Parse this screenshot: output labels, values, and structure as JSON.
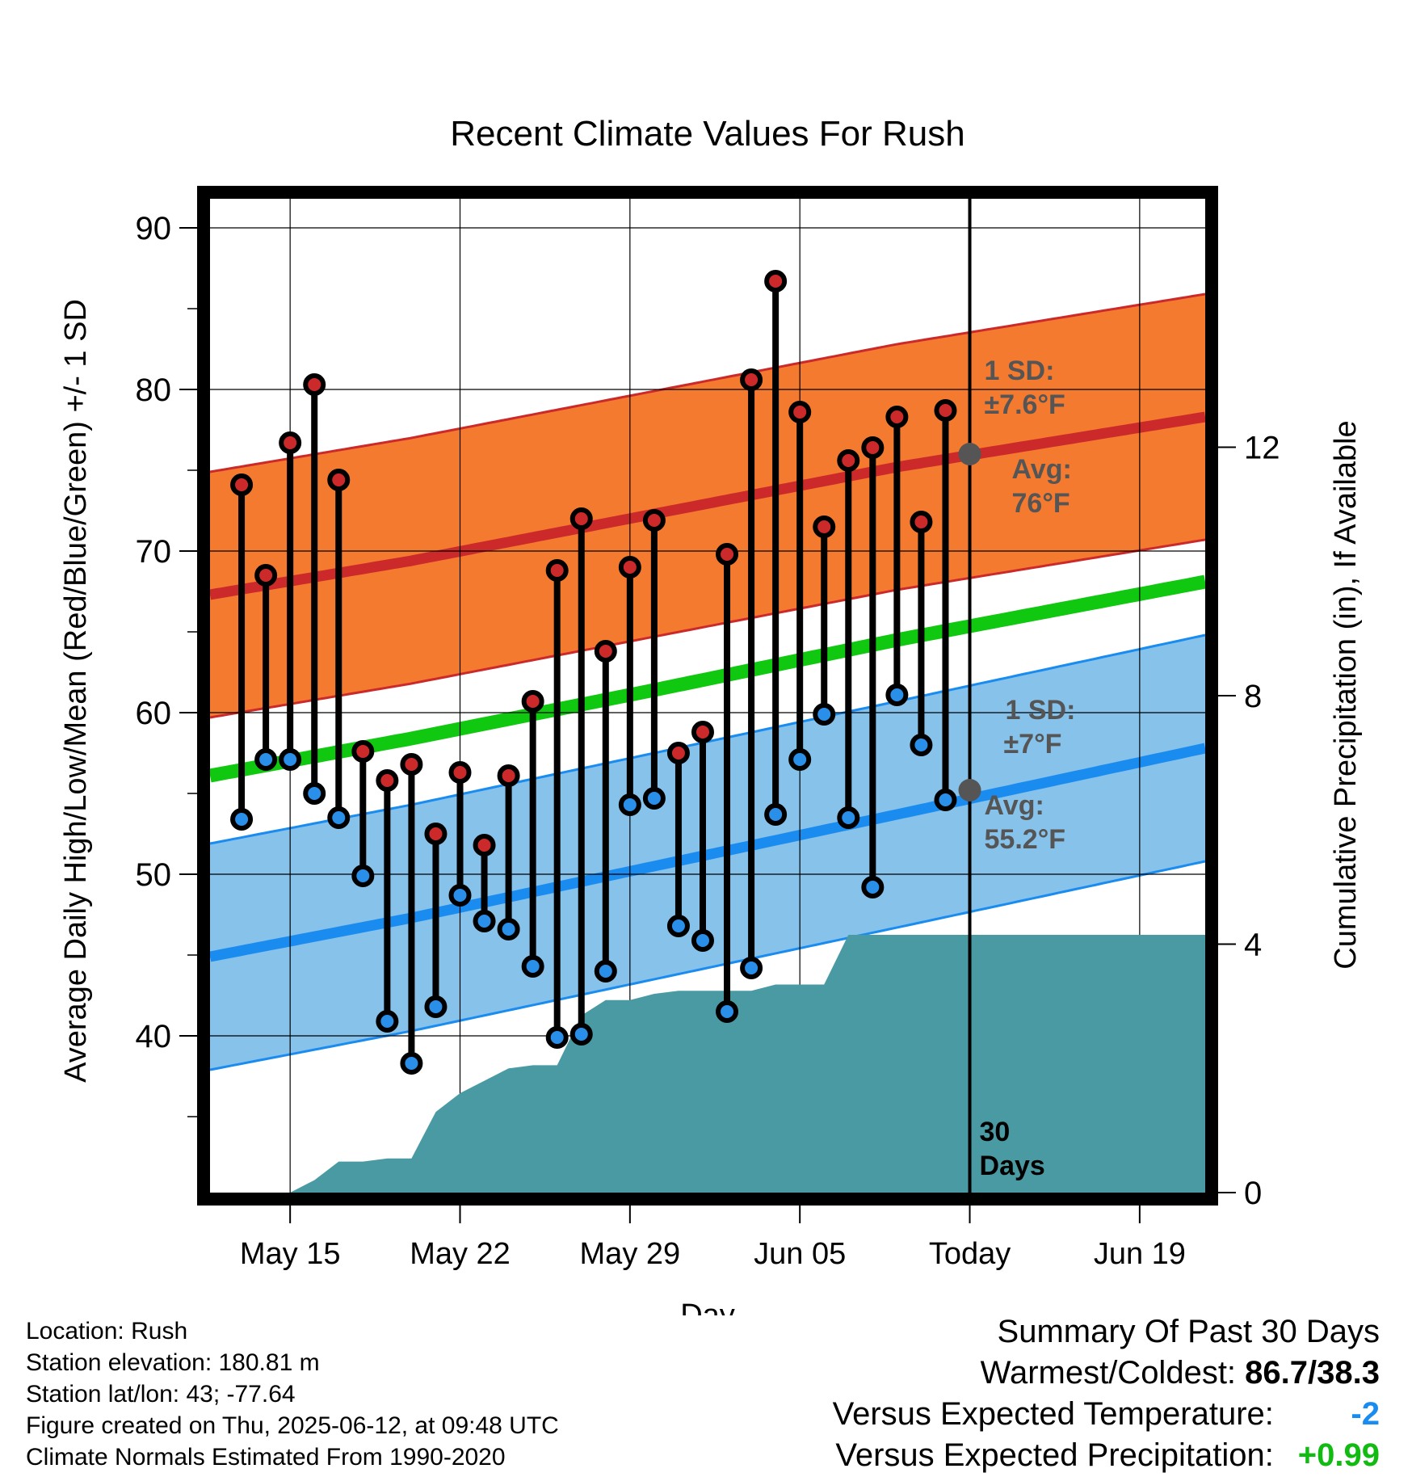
{
  "colors": {
    "high_dot": "#cc2a2a",
    "low_dot": "#2a8fe8",
    "high_band": "#f47a30",
    "high_avg": "#cc2a2a",
    "low_band": "#87c2ea",
    "low_avg": "#1a8cf0",
    "mean_line": "#11c811",
    "precip": "#4a9aa4",
    "annotation": "#555555",
    "warm_value": "#000000",
    "temp_diff": "#1a8cf0",
    "precip_diff": "#11bb11"
  },
  "chart_data": {
    "type": "line",
    "title": "Recent Climate Values For Rush",
    "xlabel": "Day",
    "ylabel": "Average Daily High/Low/Mean (Red/Blue/Green) +/- 1 SD",
    "ylabel_right": "Cumulative Precipitation (in), If Available",
    "x_ticks": [
      "May 15",
      "May 22",
      "May 29",
      "Jun 05",
      "Today",
      "Jun 19"
    ],
    "x_tick_days": [
      15,
      22,
      29,
      36,
      43,
      50
    ],
    "x_range_days": [
      11.7,
      52.7
    ],
    "today_day": 43,
    "ylim": [
      30.3,
      91.8
    ],
    "y_ticks": [
      40,
      50,
      60,
      70,
      80,
      90
    ],
    "y2_range": [
      0,
      16
    ],
    "y2_ticks": [
      0,
      4,
      8,
      12
    ],
    "window_label": "30 Days",
    "daily": {
      "day": [
        13,
        14,
        15,
        16,
        17,
        18,
        19,
        20,
        21,
        22,
        23,
        24,
        25,
        26,
        27,
        28,
        29,
        30,
        31,
        32,
        33,
        34,
        35,
        36,
        37,
        38,
        39,
        40,
        41,
        42
      ],
      "high": [
        74.1,
        68.5,
        76.7,
        80.3,
        74.4,
        57.6,
        55.8,
        56.8,
        52.5,
        56.3,
        51.8,
        56.1,
        60.7,
        68.8,
        72.0,
        63.8,
        69.0,
        71.9,
        57.5,
        58.8,
        69.8,
        80.6,
        86.7,
        78.6,
        71.5,
        75.6,
        76.4,
        78.3,
        71.8,
        78.7
      ],
      "low": [
        53.4,
        57.1,
        57.1,
        55.0,
        53.5,
        49.9,
        40.9,
        38.3,
        41.8,
        48.7,
        47.1,
        46.6,
        44.3,
        39.9,
        40.1,
        44.0,
        54.3,
        54.7,
        46.8,
        45.9,
        41.5,
        44.2,
        53.7,
        57.1,
        59.9,
        53.5,
        49.2,
        61.1,
        58.0,
        54.6
      ]
    },
    "normals": {
      "day": [
        11.7,
        20,
        30,
        40,
        52.7
      ],
      "avg_high": [
        67.3,
        69.4,
        72.3,
        75.2,
        78.3
      ],
      "avg_low": [
        44.9,
        47.3,
        50.5,
        53.7,
        57.8
      ],
      "mean": [
        56.1,
        58.4,
        61.4,
        64.5,
        68.1
      ],
      "high_sd": 7.6,
      "low_sd": 7.0
    },
    "precip_cumulative": {
      "day": [
        15,
        16,
        17,
        18,
        19,
        20,
        21,
        22,
        23,
        24,
        25,
        26,
        27,
        28,
        29,
        30,
        31,
        32,
        33,
        34,
        35,
        36,
        37,
        38,
        39,
        40,
        43,
        52.7
      ],
      "value": [
        0,
        0.2,
        0.5,
        0.5,
        0.55,
        0.55,
        1.3,
        1.6,
        1.8,
        2.0,
        2.05,
        2.05,
        2.85,
        3.1,
        3.1,
        3.2,
        3.25,
        3.25,
        3.25,
        3.25,
        3.35,
        3.35,
        3.35,
        4.15,
        4.15,
        4.15,
        4.15,
        4.15
      ]
    },
    "annotations": {
      "high_sd_label": "1 SD:",
      "high_sd_value": "±7.6°F",
      "high_avg_label": "Avg:",
      "high_avg_value": "76°F",
      "high_avg_today": 76.0,
      "low_sd_label": "1 SD:",
      "low_sd_value": "±7°F",
      "low_avg_label": "Avg:",
      "low_avg_value": "55.2°F",
      "low_avg_today": 55.2
    }
  },
  "footer": {
    "location": "Location: Rush",
    "elevation": "Station elevation: 180.81 m",
    "latlon": "Station lat/lon: 43; -77.64",
    "created": "Figure created on Thu, 2025-06-12, at 09:48 UTC",
    "normals": "Climate Normals Estimated From 1990-2020"
  },
  "summary": {
    "title": "Summary Of Past 30 Days",
    "warm_cold_label": "Warmest/Coldest:",
    "warm_cold_value": "86.7/38.3",
    "temp_label": "Versus Expected Temperature:",
    "temp_value": "-2",
    "precip_label": "Versus Expected Precipitation:",
    "precip_value": "+0.99"
  }
}
